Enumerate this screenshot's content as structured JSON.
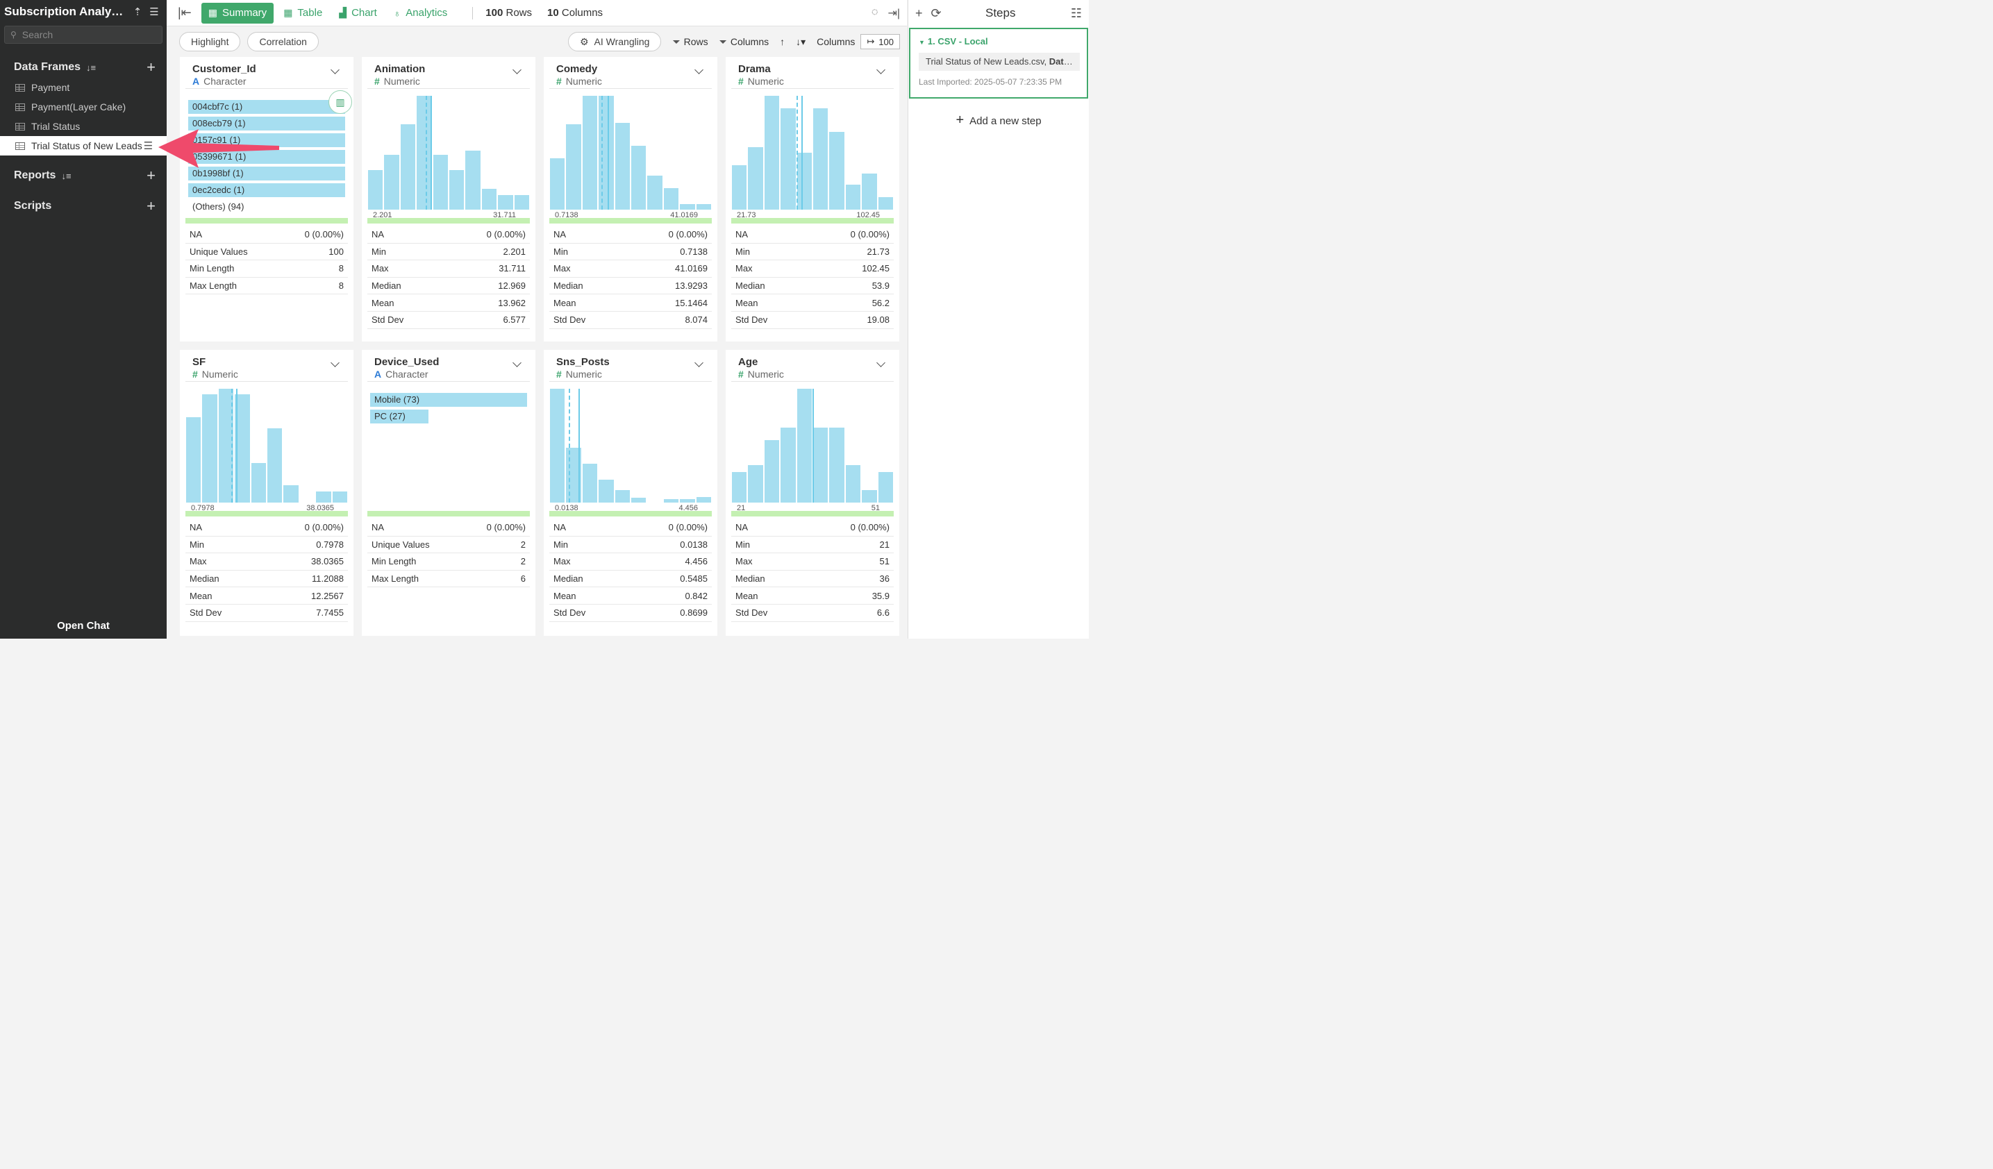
{
  "sidebar": {
    "project_title": "Subscription Analy…",
    "search_placeholder": "Search",
    "data_frames_label": "Data Frames",
    "items": [
      {
        "label": "Payment"
      },
      {
        "label": "Payment(Layer Cake)"
      },
      {
        "label": "Trial Status"
      },
      {
        "label": "Trial Status of New Leads"
      }
    ],
    "reports_label": "Reports",
    "scripts_label": "Scripts",
    "open_chat": "Open Chat"
  },
  "toolbar": {
    "tabs": [
      {
        "label": "Summary"
      },
      {
        "label": "Table"
      },
      {
        "label": "Chart"
      },
      {
        "label": "Analytics"
      }
    ],
    "rows_count": "100",
    "rows_label": "Rows",
    "cols_count": "10",
    "cols_label": "Columns"
  },
  "subbar": {
    "highlight": "Highlight",
    "correlation": "Correlation",
    "ai_wrangling": "AI Wrangling",
    "rows": "Rows",
    "columns": "Columns",
    "columns_label": "Columns",
    "columns_value": "100"
  },
  "cards": [
    {
      "name": "Customer_Id",
      "type": "Character",
      "categories": [
        {
          "label": "004cbf7c (1)",
          "fraction": 1.0
        },
        {
          "label": "008ecb79 (1)",
          "fraction": 1.0
        },
        {
          "label": "0157c91 (1)",
          "fraction": 1.0
        },
        {
          "label": "05399671 (1)",
          "fraction": 1.0
        },
        {
          "label": "0b1998bf (1)",
          "fraction": 1.0
        },
        {
          "label": "0ec2cedc (1)",
          "fraction": 1.0
        }
      ],
      "others": "(Others) (94)",
      "stats": [
        [
          "NA",
          "0 (0.00%)"
        ],
        [
          "Unique Values",
          "100"
        ],
        [
          "Min Length",
          "8"
        ],
        [
          "Max Length",
          "8"
        ]
      ]
    },
    {
      "name": "Animation",
      "type": "Numeric",
      "hist": [
        0.35,
        0.48,
        0.75,
        1.0,
        0.48,
        0.35,
        0.52,
        0.18,
        0.13,
        0.13
      ],
      "median_frac": 0.36,
      "mean_frac": 0.39,
      "min_label": "2.201",
      "max_label": "31.711",
      "stats": [
        [
          "NA",
          "0 (0.00%)"
        ],
        [
          "Min",
          "2.201"
        ],
        [
          "Max",
          "31.711"
        ],
        [
          "Median",
          "12.969"
        ],
        [
          "Mean",
          "13.962"
        ],
        [
          "Std Dev",
          "6.577"
        ]
      ]
    },
    {
      "name": "Comedy",
      "type": "Numeric",
      "hist": [
        0.45,
        0.75,
        1.0,
        1.0,
        0.76,
        0.56,
        0.3,
        0.19,
        0.05,
        0.05
      ],
      "median_frac": 0.32,
      "mean_frac": 0.36,
      "min_label": "0.7138",
      "max_label": "41.0169",
      "stats": [
        [
          "NA",
          "0 (0.00%)"
        ],
        [
          "Min",
          "0.7138"
        ],
        [
          "Max",
          "41.0169"
        ],
        [
          "Median",
          "13.9293"
        ],
        [
          "Mean",
          "15.1464"
        ],
        [
          "Std Dev",
          "8.074"
        ]
      ]
    },
    {
      "name": "Drama",
      "type": "Numeric",
      "hist": [
        0.39,
        0.55,
        1.0,
        0.89,
        0.5,
        0.89,
        0.68,
        0.22,
        0.32,
        0.11
      ],
      "median_frac": 0.4,
      "mean_frac": 0.43,
      "min_label": "21.73",
      "max_label": "102.45",
      "stats": [
        [
          "NA",
          "0 (0.00%)"
        ],
        [
          "Min",
          "21.73"
        ],
        [
          "Max",
          "102.45"
        ],
        [
          "Median",
          "53.9"
        ],
        [
          "Mean",
          "56.2"
        ],
        [
          "Std Dev",
          "19.08"
        ]
      ]
    },
    {
      "name": "SF",
      "type": "Numeric",
      "hist": [
        0.75,
        0.95,
        1.0,
        0.95,
        0.35,
        0.65,
        0.15,
        0.0,
        0.1,
        0.1
      ],
      "median_frac": 0.28,
      "mean_frac": 0.31,
      "min_label": "0.7978",
      "max_label": "38.0365",
      "stats": [
        [
          "NA",
          "0 (0.00%)"
        ],
        [
          "Min",
          "0.7978"
        ],
        [
          "Max",
          "38.0365"
        ],
        [
          "Median",
          "11.2088"
        ],
        [
          "Mean",
          "12.2567"
        ],
        [
          "Std Dev",
          "7.7455"
        ]
      ]
    },
    {
      "name": "Device_Used",
      "type": "Character",
      "categories": [
        {
          "label": "Mobile (73)",
          "fraction": 1.0
        },
        {
          "label": "PC (27)",
          "fraction": 0.37
        }
      ],
      "others": "",
      "stats": [
        [
          "NA",
          "0 (0.00%)"
        ],
        [
          "Unique Values",
          "2"
        ],
        [
          "Min Length",
          "2"
        ],
        [
          "Max Length",
          "6"
        ]
      ]
    },
    {
      "name": "Sns_Posts",
      "type": "Numeric",
      "hist": [
        1.0,
        0.48,
        0.34,
        0.2,
        0.11,
        0.04,
        0.0,
        0.03,
        0.03,
        0.05
      ],
      "median_frac": 0.12,
      "mean_frac": 0.18,
      "min_label": "0.0138",
      "max_label": "4.456",
      "stats": [
        [
          "NA",
          "0 (0.00%)"
        ],
        [
          "Min",
          "0.0138"
        ],
        [
          "Max",
          "4.456"
        ],
        [
          "Median",
          "0.5485"
        ],
        [
          "Mean",
          "0.842"
        ],
        [
          "Std Dev",
          "0.8699"
        ]
      ]
    },
    {
      "name": "Age",
      "type": "Numeric",
      "hist": [
        0.27,
        0.33,
        0.55,
        0.66,
        1.0,
        0.66,
        0.66,
        0.33,
        0.11,
        0.27
      ],
      "median_frac": 0.5,
      "mean_frac": 0.5,
      "min_label": "21",
      "max_label": "51",
      "stats": [
        [
          "NA",
          "0 (0.00%)"
        ],
        [
          "Min",
          "21"
        ],
        [
          "Max",
          "51"
        ],
        [
          "Median",
          "36"
        ],
        [
          "Mean",
          "35.9"
        ],
        [
          "Std Dev",
          "6.6"
        ]
      ]
    }
  ],
  "steps": {
    "title": "Steps",
    "step_name": "1. CSV - Local",
    "step_source_file": "Trial Status of New Leads.csv, ",
    "step_source_bold": "Data…",
    "step_meta": "Last Imported: 2025-05-07 7:23:35 PM",
    "add_step": "Add a new step"
  },
  "colors": {
    "accent": "#40a86b",
    "bar": "#a6def0",
    "line": "#6ccbe8",
    "annotation_arrow": "#ef4a6b"
  }
}
